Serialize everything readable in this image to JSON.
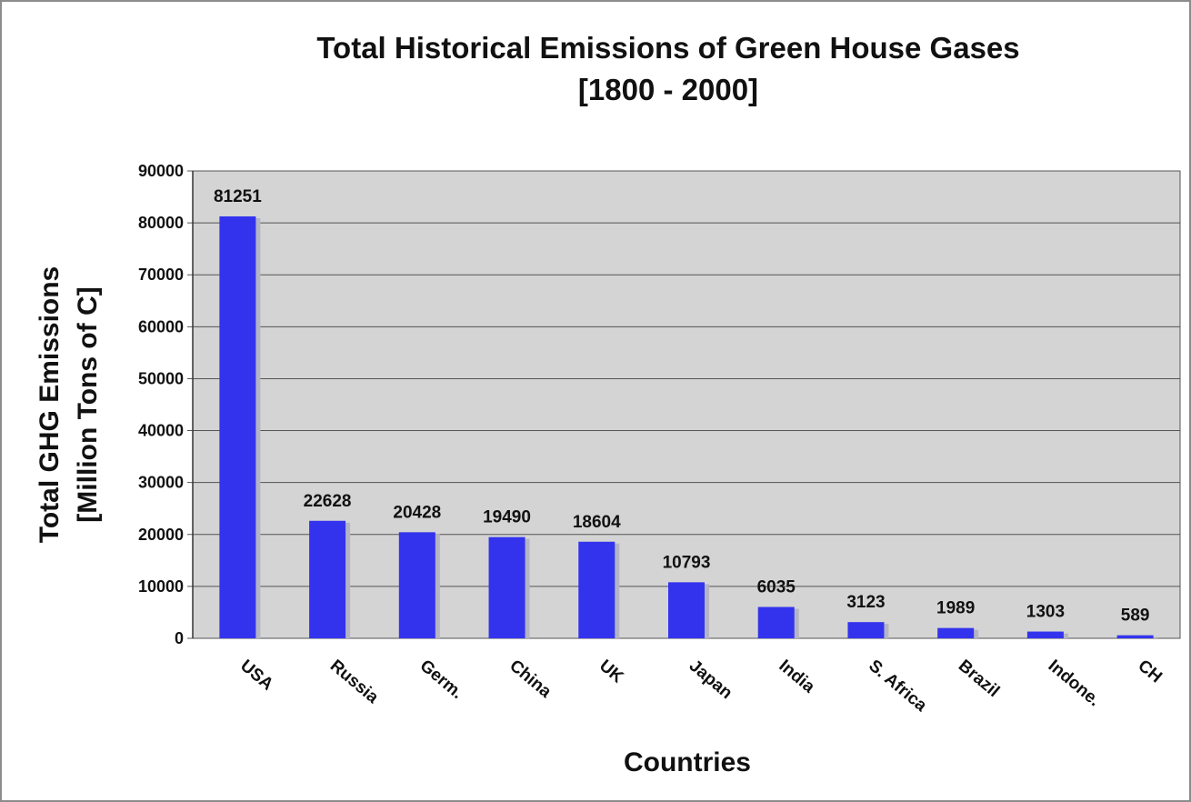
{
  "chart_data": {
    "type": "bar",
    "title": "Total Historical Emissions of Green House Gases",
    "subtitle": "[1800 - 2000]",
    "xlabel": "Countries",
    "ylabel_line1": "Total GHG Emissions",
    "ylabel_line2": "[Million Tons of C]",
    "categories": [
      "USA",
      "Russia",
      "Germ.",
      "China",
      "UK",
      "Japan",
      "India",
      "S. Africa",
      "Brazil",
      "Indone.",
      "CH"
    ],
    "values": [
      81251,
      22628,
      20428,
      19490,
      18604,
      10793,
      6035,
      3123,
      1989,
      1303,
      589
    ],
    "data_labels": [
      "81251",
      "22628",
      "20428",
      "19490",
      "18604",
      "10793",
      "6035",
      "3123",
      "1989",
      "1303",
      "589"
    ],
    "ylim": [
      0,
      90000
    ],
    "yticks": [
      0,
      10000,
      20000,
      30000,
      40000,
      50000,
      60000,
      70000,
      80000,
      90000
    ],
    "grid": true,
    "legend": "none",
    "colors": {
      "bar": "#3333ee",
      "bar_shadow": "#b4b4c4",
      "plot_background": "#d4d4d4",
      "gridline": "#555555"
    }
  }
}
